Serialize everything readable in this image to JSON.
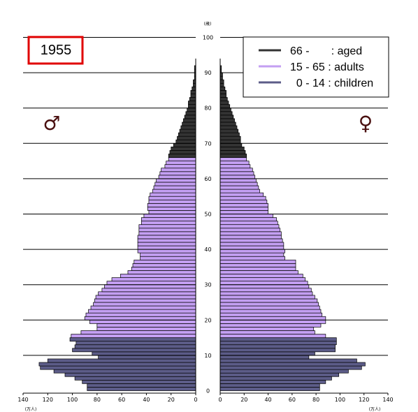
{
  "chart_data": {
    "type": "bar",
    "subtype": "population-pyramid",
    "title": "1955",
    "age_unit_label": "(歳)",
    "value_unit_label": "(万人)",
    "male_symbol": "♂",
    "female_symbol": "♀",
    "age_ticks": [
      0,
      10,
      20,
      30,
      40,
      50,
      60,
      70,
      80,
      90,
      100
    ],
    "age_range": [
      0,
      100
    ],
    "value_ticks": [
      0,
      20,
      40,
      60,
      80,
      100,
      120,
      140
    ],
    "xlim": [
      0,
      140
    ],
    "legend": [
      {
        "label": "66 -       : aged",
        "color": "#333333"
      },
      {
        "label": "15 - 65 : adults",
        "color": "#c39ff2"
      },
      {
        "label": "  0 - 14 : children",
        "color": "#5c5c88"
      }
    ],
    "group_colors": {
      "children": "#5c5c88",
      "adults": "#c39ff2",
      "aged": "#333333"
    },
    "series": [
      {
        "name": "male",
        "values": [
          88,
          88,
          92,
          98,
          106,
          115,
          126,
          127,
          120,
          79,
          84,
          100,
          98,
          97,
          102,
          101,
          93,
          80,
          80,
          86,
          90,
          89,
          87,
          85,
          83,
          82,
          81,
          79,
          76,
          74,
          72,
          68,
          61,
          55,
          52,
          51,
          50,
          45,
          45,
          47,
          47,
          47,
          47,
          47,
          46,
          46,
          46,
          44,
          44,
          42,
          38,
          39,
          39,
          38,
          38,
          37,
          35,
          34,
          33,
          32,
          30,
          29,
          28,
          25,
          24,
          22,
          22,
          21,
          20,
          18,
          16,
          15,
          14,
          13,
          12,
          11,
          10,
          9,
          8,
          7,
          6,
          6,
          5,
          4,
          4,
          3,
          2,
          2,
          1,
          1,
          1,
          1
        ]
      },
      {
        "name": "female",
        "values": [
          83,
          83,
          88,
          93,
          99,
          107,
          118,
          121,
          114,
          74,
          79,
          96,
          96,
          97,
          97,
          88,
          79,
          78,
          84,
          88,
          88,
          85,
          84,
          83,
          82,
          81,
          79,
          77,
          76,
          74,
          73,
          71,
          69,
          65,
          63,
          63,
          63,
          54,
          53,
          54,
          53,
          53,
          52,
          51,
          51,
          50,
          49,
          48,
          47,
          44,
          40,
          40,
          40,
          39,
          38,
          36,
          33,
          32,
          31,
          30,
          29,
          28,
          27,
          25,
          24,
          22,
          22,
          21,
          20,
          18,
          17,
          17,
          16,
          15,
          14,
          13,
          12,
          11,
          10,
          9,
          8,
          7,
          6,
          5,
          5,
          4,
          3,
          3,
          2,
          2,
          1,
          1
        ]
      }
    ]
  }
}
